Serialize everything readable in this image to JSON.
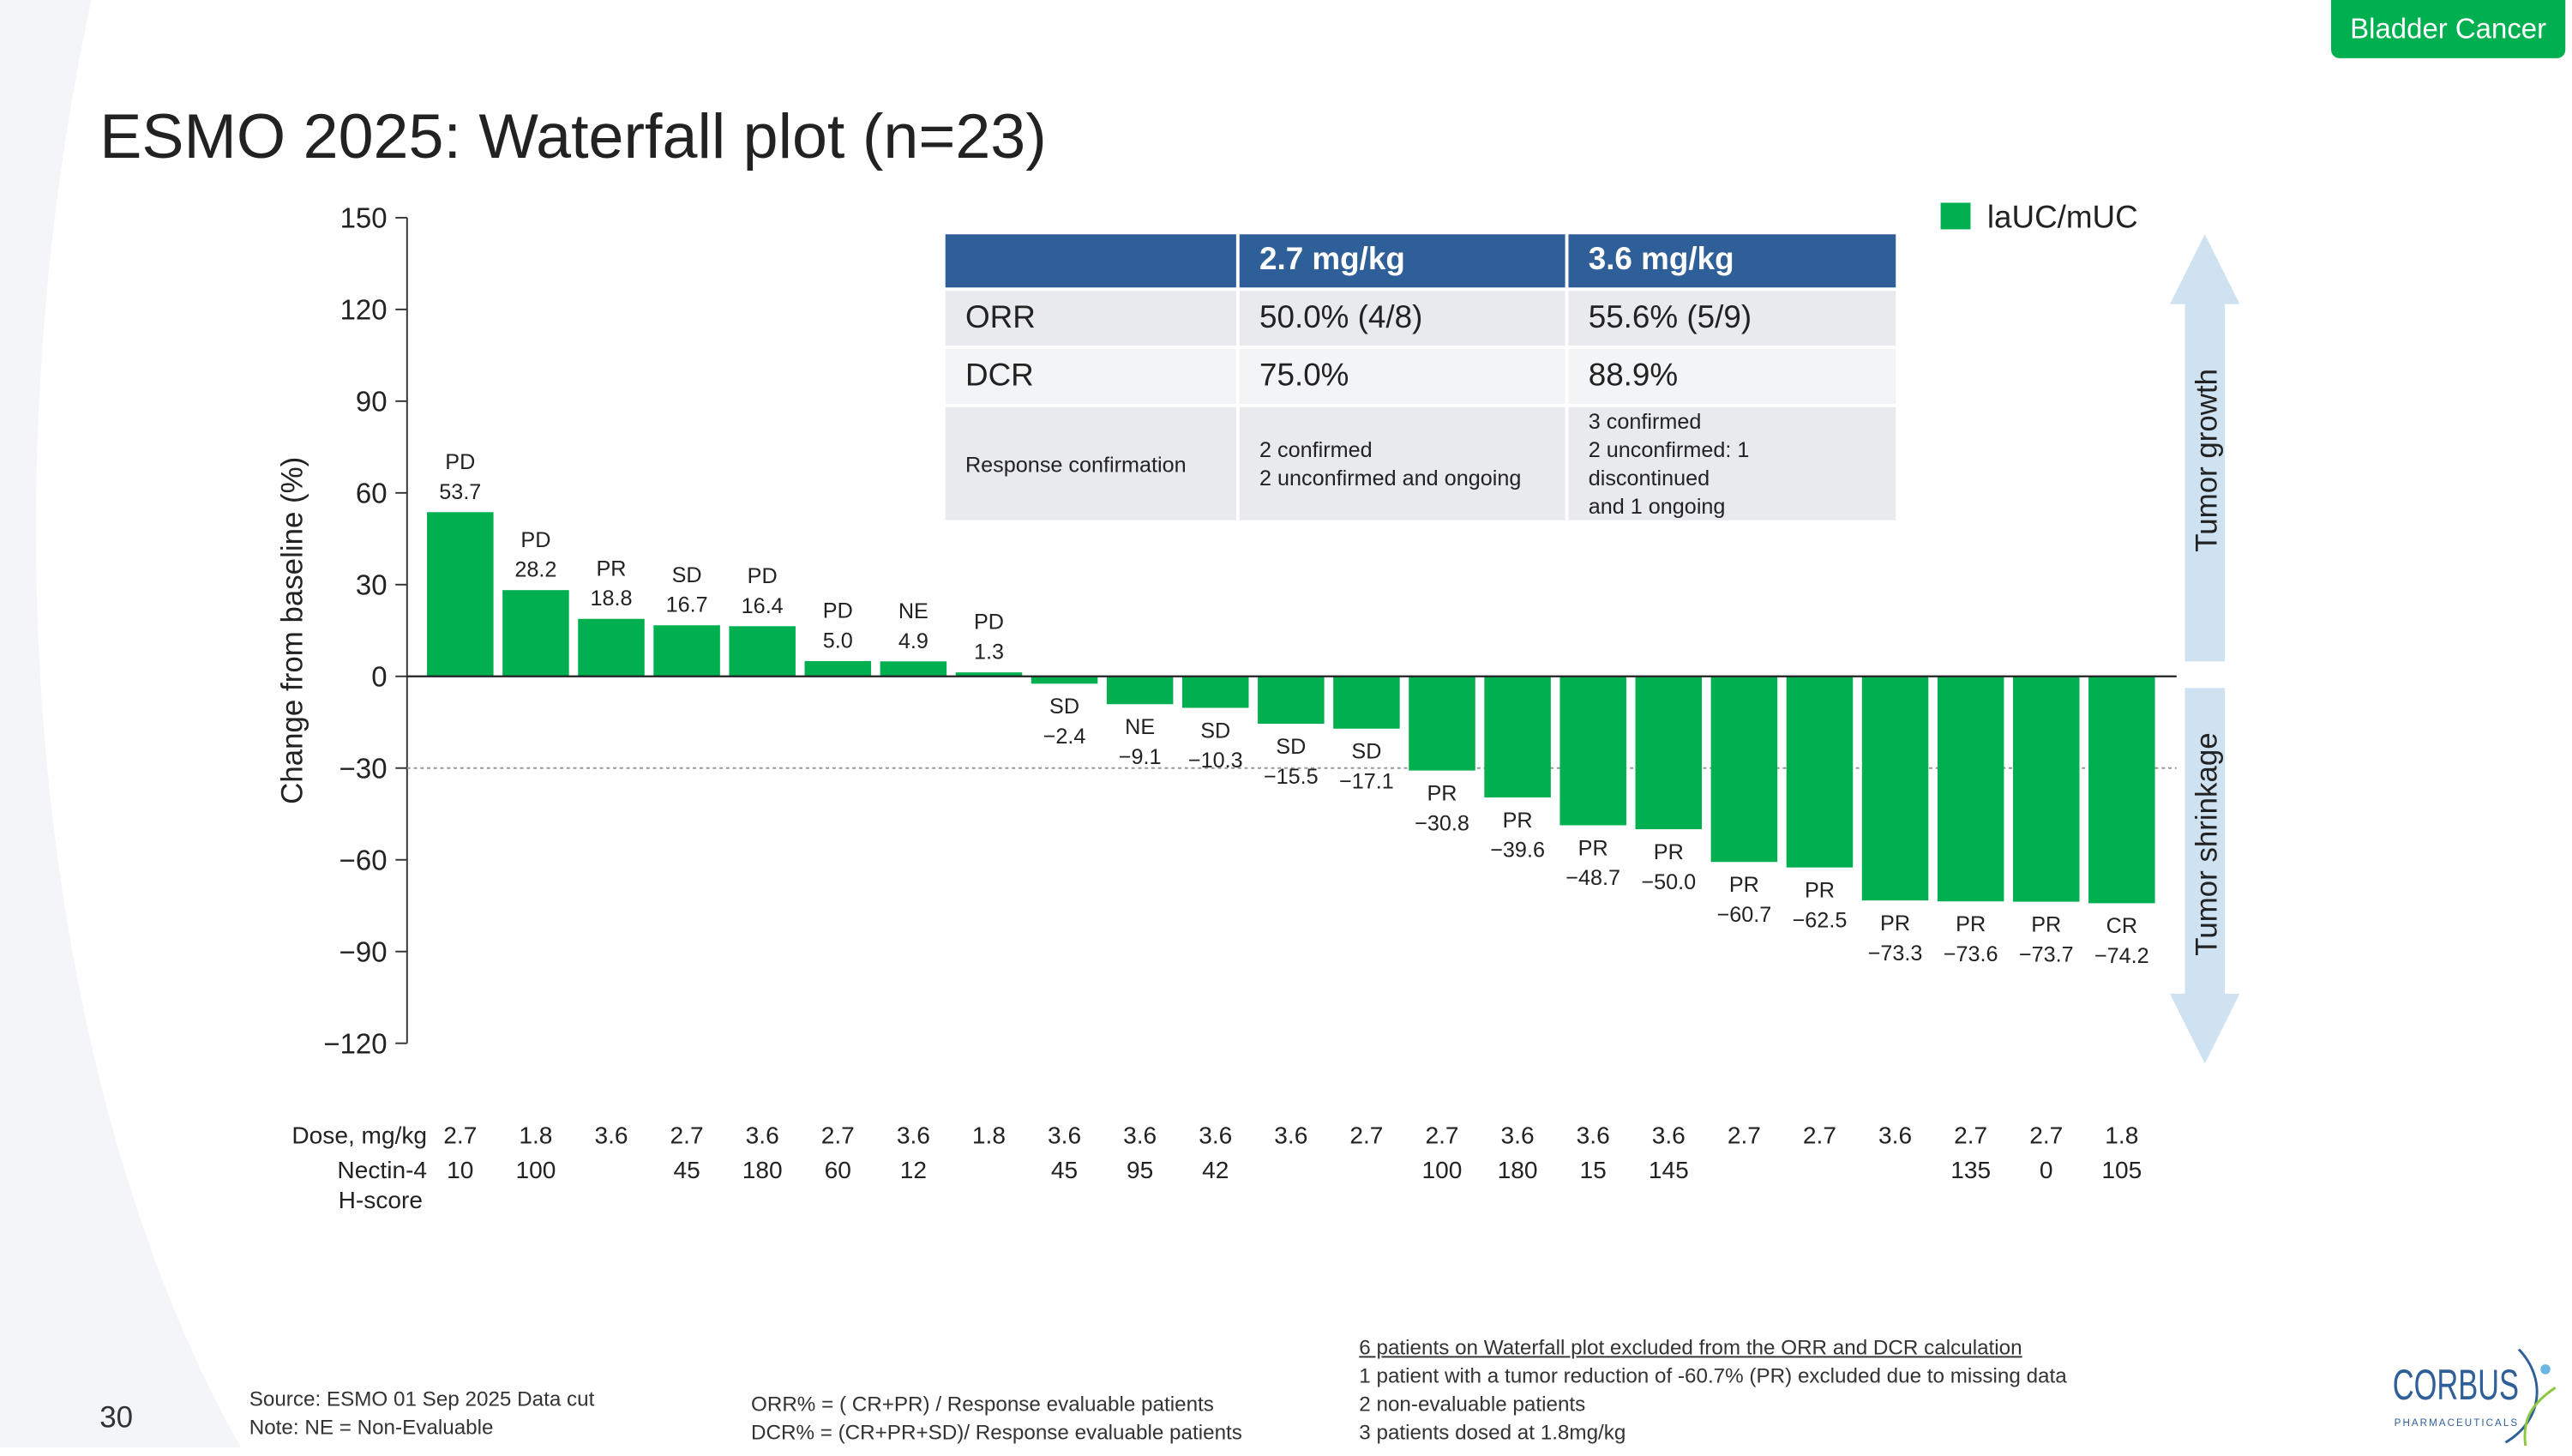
{
  "badge": "Bladder Cancer",
  "title": "ESMO 2025: Waterfall plot (n=23)",
  "colors": {
    "bar": "#00b050",
    "table_header": "#2f5f98",
    "arrow": "#cfe2f1",
    "badge": "#00b050",
    "logo": "#2f5f98"
  },
  "table": {
    "headers": [
      "",
      "2.7 mg/kg",
      "3.6 mg/kg"
    ],
    "rows": [
      {
        "label": "ORR",
        "c1": "50.0% (4/8)",
        "c2": "55.6% (5/9)"
      },
      {
        "label": "DCR",
        "c1": "75.0%",
        "c2": "88.9%"
      },
      {
        "label": "Response confirmation",
        "c1": [
          "2 confirmed",
          "2 unconfirmed and ongoing"
        ],
        "c2": [
          "3 confirmed",
          "2 unconfirmed: 1 discontinued",
          "and 1 ongoing"
        ]
      }
    ]
  },
  "chart_data": {
    "type": "bar",
    "ylabel": "Change from baseline (%)",
    "ylim": [
      -120,
      150
    ],
    "yticks": [
      150,
      120,
      90,
      60,
      30,
      0,
      -30,
      -60,
      -90,
      -120
    ],
    "reference_line": -30,
    "legend": {
      "entries": [
        "laUC/mUC"
      ],
      "placement": "top-right"
    },
    "values": [
      53.7,
      28.2,
      18.8,
      16.7,
      16.4,
      5.0,
      4.9,
      1.3,
      -2.4,
      -9.1,
      -10.3,
      -15.5,
      -17.1,
      -30.8,
      -39.6,
      -48.7,
      -50.0,
      -60.7,
      -62.5,
      -73.3,
      -73.6,
      -73.7,
      -74.2
    ],
    "value_labels": [
      "53.7",
      "28.2",
      "18.8",
      "16.7",
      "16.4",
      "5.0",
      "4.9",
      "1.3",
      "−2.4",
      "−9.1",
      "−10.3",
      "−15.5",
      "−17.1",
      "−30.8",
      "−39.6",
      "−48.7",
      "−50.0",
      "−60.7",
      "−62.5",
      "−73.3",
      "−73.6",
      "−73.7",
      "−74.2"
    ],
    "response": [
      "PD",
      "PD",
      "PR",
      "SD",
      "PD",
      "PD",
      "NE",
      "PD",
      "SD",
      "NE",
      "SD",
      "SD",
      "SD",
      "PR",
      "PR",
      "PR",
      "PR",
      "PR",
      "PR",
      "PR",
      "PR",
      "PR",
      "CR"
    ],
    "dose_label": "Dose, mg/kg",
    "dose": [
      "2.7",
      "1.8",
      "3.6",
      "2.7",
      "3.6",
      "2.7",
      "3.6",
      "1.8",
      "3.6",
      "3.6",
      "3.6",
      "3.6",
      "2.7",
      "2.7",
      "3.6",
      "3.6",
      "3.6",
      "2.7",
      "2.7",
      "3.6",
      "2.7",
      "2.7",
      "1.8"
    ],
    "hscore_label": [
      "Nectin-4",
      "H-score"
    ],
    "hscore": [
      "10",
      "100",
      "",
      "45",
      "180",
      "60",
      "12",
      "",
      "45",
      "95",
      "42",
      "",
      "",
      "100",
      "180",
      "15",
      "145",
      "",
      "",
      "",
      "135",
      "0",
      "105"
    ],
    "arrows": {
      "up": "Tumor growth",
      "down": "Tumor shrinkage"
    }
  },
  "footer": {
    "page": "30",
    "source": [
      "Source: ESMO 01 Sep 2025 Data cut",
      "Note: NE = Non-Evaluable"
    ],
    "formulas": [
      "ORR% = ( CR+PR) / Response evaluable patients",
      "DCR% = (CR+PR+SD)/ Response evaluable patients"
    ],
    "exclusions_title": "6 patients on Waterfall plot  excluded from the ORR and DCR calculation",
    "exclusions": [
      "1 patient  with a tumor reduction  of -60.7% (PR)  excluded due to missing data",
      "2  non-evaluable patients",
      "3  patients dosed at 1.8mg/kg"
    ]
  },
  "logo": {
    "name": "CORBUS",
    "sub": "PHARMACEUTICALS"
  }
}
